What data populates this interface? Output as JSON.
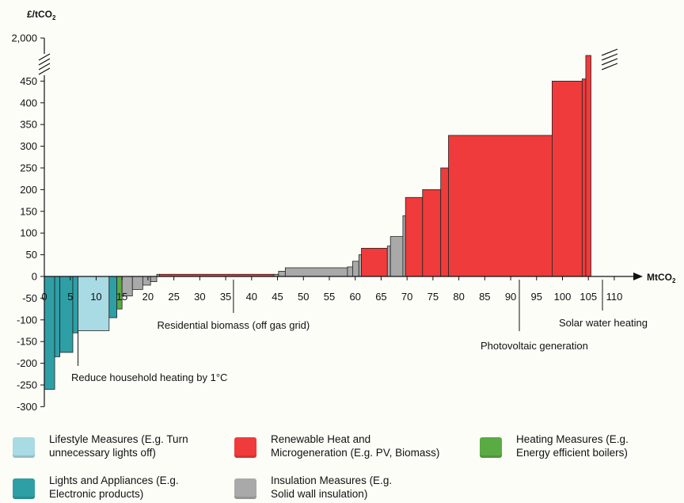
{
  "chart_data": {
    "type": "bar",
    "subtype": "marginal-abatement-cost-curve",
    "ylabel": "£/tCO",
    "ylabel_subscript": "2",
    "xlabel": "MtCO",
    "xlabel_subscript": "2",
    "xlim": [
      0,
      110
    ],
    "ylim": [
      -300,
      2000
    ],
    "y_axis_break": {
      "from": 450,
      "to": 2000
    },
    "x_ticks": [
      "0",
      "5",
      "10",
      "15",
      "20",
      "25",
      "30",
      "35",
      "40",
      "45",
      "50",
      "55",
      "60",
      "65",
      "70",
      "75",
      "80",
      "85",
      "90",
      "95",
      "100",
      "105",
      "110"
    ],
    "y_ticks": [
      "2,000",
      "450",
      "400",
      "350",
      "300",
      "250",
      "200",
      "150",
      "100",
      "50",
      "0",
      "-50",
      "-100",
      "-150",
      "-200",
      "-250",
      "-300"
    ],
    "grid": false,
    "legend_position": "bottom",
    "colors": {
      "lifestyle": "#a8dbe3",
      "lights": "#2f9fa6",
      "renewable": "#ef3b3b",
      "insulation": "#a9a9a9",
      "heating": "#5aab43"
    },
    "bars": [
      {
        "x0": 0,
        "x1": 2,
        "y": -260,
        "category": "lights"
      },
      {
        "x0": 2,
        "x1": 3,
        "y": -185,
        "category": "lights"
      },
      {
        "x0": 3,
        "x1": 5.5,
        "y": -175,
        "category": "lights"
      },
      {
        "x0": 5.5,
        "x1": 6.5,
        "y": -130,
        "category": "lights"
      },
      {
        "x0": 6.5,
        "x1": 12.5,
        "y": -125,
        "category": "lifestyle"
      },
      {
        "x0": 12.5,
        "x1": 14,
        "y": -95,
        "category": "lights"
      },
      {
        "x0": 14,
        "x1": 15,
        "y": -75,
        "category": "heating"
      },
      {
        "x0": 15,
        "x1": 17,
        "y": -45,
        "category": "insulation"
      },
      {
        "x0": 17,
        "x1": 19,
        "y": -30,
        "category": "insulation"
      },
      {
        "x0": 19,
        "x1": 20.5,
        "y": -20,
        "category": "insulation"
      },
      {
        "x0": 20.5,
        "x1": 21.7,
        "y": -12,
        "category": "insulation"
      },
      {
        "x0": 21.7,
        "x1": 22.2,
        "y": 5,
        "category": "insulation"
      },
      {
        "x0": 22.2,
        "x1": 44.3,
        "y": 5,
        "category": "renewable"
      },
      {
        "x0": 44.3,
        "x1": 45.2,
        "y": 5,
        "category": "insulation"
      },
      {
        "x0": 45.2,
        "x1": 46.5,
        "y": 12,
        "category": "insulation"
      },
      {
        "x0": 46.5,
        "x1": 58.5,
        "y": 20,
        "category": "insulation"
      },
      {
        "x0": 58.5,
        "x1": 59.5,
        "y": 22,
        "category": "insulation"
      },
      {
        "x0": 59.5,
        "x1": 60.7,
        "y": 35,
        "category": "insulation"
      },
      {
        "x0": 60.7,
        "x1": 61.2,
        "y": 50,
        "category": "insulation"
      },
      {
        "x0": 61.2,
        "x1": 66.2,
        "y": 65,
        "category": "renewable"
      },
      {
        "x0": 66.2,
        "x1": 66.8,
        "y": 70,
        "category": "insulation"
      },
      {
        "x0": 66.8,
        "x1": 69.2,
        "y": 92,
        "category": "insulation"
      },
      {
        "x0": 69.2,
        "x1": 69.7,
        "y": 140,
        "category": "insulation"
      },
      {
        "x0": 69.7,
        "x1": 73,
        "y": 182,
        "category": "renewable"
      },
      {
        "x0": 73,
        "x1": 76.5,
        "y": 200,
        "category": "renewable"
      },
      {
        "x0": 76.5,
        "x1": 78,
        "y": 250,
        "category": "renewable"
      },
      {
        "x0": 78,
        "x1": 98,
        "y": 325,
        "category": "renewable"
      },
      {
        "x0": 98,
        "x1": 103.8,
        "y": 450,
        "category": "renewable"
      },
      {
        "x0": 103.8,
        "x1": 104.5,
        "y": 455,
        "category": "renewable"
      },
      {
        "x0": 104.5,
        "x1": 105.5,
        "y": 2000,
        "category": "renewable",
        "broken": true
      }
    ],
    "annotations": [
      {
        "text": "Residential biomass (off gas grid)",
        "anchor_x": 36.5,
        "anchor_y": 5
      },
      {
        "text": "Reduce household heating by 1°C",
        "anchor_x": 6.5,
        "anchor_y": -125
      },
      {
        "text": "Photovoltaic generation",
        "anchor_x": 88,
        "anchor_y": 0
      },
      {
        "text": "Solar water heating",
        "anchor_x": 105,
        "anchor_y": 0
      }
    ],
    "legend": [
      {
        "key": "lifestyle",
        "label": "Lifestyle Measures (E.g. Turn\nunnecessary lights off)"
      },
      {
        "key": "renewable",
        "label": "Renewable Heat and\nMicrogeneration (E.g. PV, Biomass)"
      },
      {
        "key": "heating",
        "label": "Heating Measures (E.g.\nEnergy efficient boilers)"
      },
      {
        "key": "lights",
        "label": "Lights and Appliances (E.g.\nElectronic products)"
      },
      {
        "key": "insulation",
        "label": "Insulation Measures (E.g.\nSolid wall insulation)"
      }
    ]
  }
}
